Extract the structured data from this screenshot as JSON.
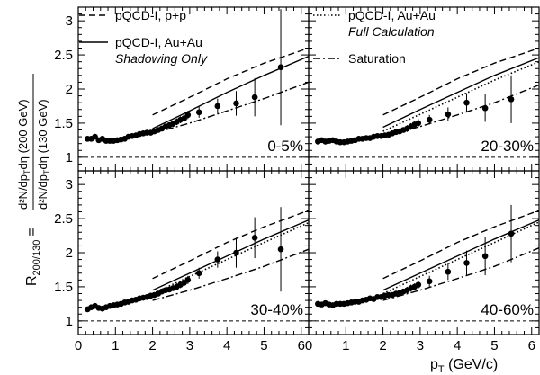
{
  "figure": {
    "ylabel_left": "R",
    "ylabel_left_sub": "200/130",
    "ylabel_equals": "=",
    "ylabel_num": "d²N/dp",
    "ylabel_num_sub": "T",
    "ylabel_num_tail": "dη  (200 GeV)",
    "ylabel_den": "d²N/dp",
    "ylabel_den_sub": "T",
    "ylabel_den_tail": "dη  (130 GeV)",
    "xlabel_main": "p",
    "xlabel_sub": "T",
    "xlabel_tail": " (GeV/c)"
  },
  "legend": {
    "pp": "pQCD-I, p+p",
    "shadow_1": "pQCD-I, Au+Au",
    "shadow_2": "Shadowing Only",
    "full_1": "pQCD-I, Au+Au",
    "full_2": "Full Calculation",
    "sat": "Saturation"
  },
  "colors": {
    "ink": "#000000",
    "background": "#ffffff"
  },
  "chart_data": [
    {
      "type": "line",
      "panel": "top-left",
      "label": "0-5%",
      "xlim": [
        0,
        6.2
      ],
      "ylim": [
        0.8,
        3.2
      ],
      "yticks": [
        1,
        1.5,
        2,
        2.5,
        3
      ],
      "ytick_labels": [
        "1",
        "1.5",
        "2",
        "2.5",
        "3"
      ],
      "reference_line_y": 1,
      "series": [
        {
          "name": "pQCD-I, p+p",
          "style": "dashed",
          "x": [
            2.0,
            3.0,
            4.0,
            5.0,
            6.2
          ],
          "y": [
            1.62,
            1.88,
            2.15,
            2.38,
            2.6
          ]
        },
        {
          "name": "pQCD-I, Au+Au (Shadowing Only)",
          "style": "solid",
          "x": [
            2.0,
            3.0,
            4.0,
            5.0,
            6.2
          ],
          "y": [
            1.42,
            1.68,
            1.95,
            2.2,
            2.48
          ]
        },
        {
          "name": "Saturation",
          "style": "dashdot",
          "x": [
            2.0,
            3.0,
            4.0,
            5.0,
            6.2
          ],
          "y": [
            1.35,
            1.5,
            1.68,
            1.86,
            2.1
          ]
        }
      ],
      "points": {
        "x": [
          0.25,
          0.35,
          0.45,
          0.55,
          0.65,
          0.75,
          0.85,
          0.95,
          1.05,
          1.15,
          1.25,
          1.35,
          1.45,
          1.55,
          1.65,
          1.75,
          1.85,
          1.95,
          2.05,
          2.15,
          2.25,
          2.35,
          2.45,
          2.55,
          2.65,
          2.75,
          2.85,
          2.95,
          3.25,
          3.75,
          4.25,
          4.75,
          5.45
        ],
        "y": [
          1.27,
          1.27,
          1.3,
          1.25,
          1.27,
          1.24,
          1.24,
          1.24,
          1.25,
          1.26,
          1.27,
          1.3,
          1.31,
          1.32,
          1.34,
          1.35,
          1.36,
          1.36,
          1.38,
          1.4,
          1.42,
          1.45,
          1.47,
          1.49,
          1.52,
          1.55,
          1.57,
          1.62,
          1.66,
          1.75,
          1.79,
          1.88,
          2.32
        ],
        "err": [
          0.03,
          0.03,
          0.03,
          0.03,
          0.03,
          0.03,
          0.03,
          0.03,
          0.03,
          0.03,
          0.03,
          0.03,
          0.03,
          0.03,
          0.03,
          0.03,
          0.03,
          0.03,
          0.03,
          0.04,
          0.04,
          0.04,
          0.04,
          0.04,
          0.05,
          0.05,
          0.05,
          0.06,
          0.08,
          0.11,
          0.18,
          0.28,
          0.85
        ]
      }
    },
    {
      "type": "line",
      "panel": "top-right",
      "label": "20-30%",
      "xlim": [
        0,
        6.2
      ],
      "ylim": [
        0.8,
        3.2
      ],
      "reference_line_y": 1,
      "series": [
        {
          "name": "pQCD-I, p+p",
          "style": "dashed",
          "x": [
            2.0,
            3.0,
            4.0,
            5.0,
            6.2
          ],
          "y": [
            1.62,
            1.88,
            2.15,
            2.38,
            2.6
          ]
        },
        {
          "name": "pQCD-I, Au+Au (Shadowing Only)",
          "style": "solid",
          "x": [
            2.0,
            3.0,
            4.0,
            5.0,
            6.2
          ],
          "y": [
            1.44,
            1.7,
            1.95,
            2.2,
            2.46
          ]
        },
        {
          "name": "pQCD-I, Au+Au (Full Calculation)",
          "style": "dotted",
          "x": [
            2.0,
            3.0,
            4.0,
            5.0,
            6.2
          ],
          "y": [
            1.38,
            1.63,
            1.88,
            2.13,
            2.4
          ]
        },
        {
          "name": "Saturation",
          "style": "dashdot",
          "x": [
            2.0,
            3.0,
            4.0,
            5.0,
            6.2
          ],
          "y": [
            1.3,
            1.45,
            1.62,
            1.8,
            2.06
          ]
        }
      ],
      "points": {
        "x": [
          0.25,
          0.35,
          0.45,
          0.55,
          0.65,
          0.75,
          0.85,
          0.95,
          1.05,
          1.15,
          1.25,
          1.35,
          1.45,
          1.55,
          1.65,
          1.75,
          1.85,
          1.95,
          2.05,
          2.15,
          2.25,
          2.35,
          2.45,
          2.55,
          2.65,
          2.75,
          2.85,
          2.95,
          3.25,
          3.75,
          4.25,
          4.75,
          5.45
        ],
        "y": [
          1.23,
          1.25,
          1.23,
          1.24,
          1.25,
          1.23,
          1.22,
          1.22,
          1.23,
          1.24,
          1.25,
          1.27,
          1.27,
          1.28,
          1.28,
          1.3,
          1.31,
          1.31,
          1.32,
          1.33,
          1.35,
          1.37,
          1.38,
          1.4,
          1.42,
          1.45,
          1.48,
          1.5,
          1.55,
          1.63,
          1.8,
          1.72,
          1.85
        ],
        "err": [
          0.03,
          0.03,
          0.03,
          0.03,
          0.03,
          0.03,
          0.03,
          0.03,
          0.03,
          0.03,
          0.03,
          0.03,
          0.03,
          0.03,
          0.03,
          0.03,
          0.03,
          0.03,
          0.03,
          0.04,
          0.04,
          0.04,
          0.04,
          0.04,
          0.05,
          0.05,
          0.05,
          0.06,
          0.07,
          0.1,
          0.14,
          0.2,
          0.35
        ]
      }
    },
    {
      "type": "line",
      "panel": "bottom-left",
      "label": "30-40%",
      "xlim": [
        0,
        6.2
      ],
      "ylim": [
        0.8,
        3.2
      ],
      "xticks": [
        0,
        1,
        2,
        3,
        4,
        5,
        6
      ],
      "xtick_labels": [
        "0",
        "1",
        "2",
        "3",
        "4",
        "5",
        "6"
      ],
      "yticks": [
        1,
        1.5,
        2,
        2.5,
        3
      ],
      "ytick_labels": [
        "1",
        "1.5",
        "2",
        "2.5",
        "3"
      ],
      "reference_line_y": 1,
      "series": [
        {
          "name": "pQCD-I, p+p",
          "style": "dashed",
          "x": [
            2.0,
            3.0,
            4.0,
            5.0,
            6.2
          ],
          "y": [
            1.62,
            1.88,
            2.15,
            2.38,
            2.62
          ]
        },
        {
          "name": "pQCD-I, Au+Au (Shadowing Only)",
          "style": "solid",
          "x": [
            2.0,
            3.0,
            4.0,
            5.0,
            6.2
          ],
          "y": [
            1.45,
            1.7,
            1.95,
            2.2,
            2.48
          ]
        },
        {
          "name": "pQCD-I, Au+Au (Full Calculation)",
          "style": "dotted",
          "x": [
            2.0,
            3.0,
            4.0,
            5.0,
            6.2
          ],
          "y": [
            1.4,
            1.65,
            1.9,
            2.15,
            2.44
          ]
        },
        {
          "name": "Saturation",
          "style": "dashdot",
          "x": [
            2.0,
            3.0,
            4.0,
            5.0,
            6.2
          ],
          "y": [
            1.3,
            1.45,
            1.62,
            1.8,
            2.05
          ]
        }
      ],
      "points": {
        "x": [
          0.25,
          0.35,
          0.45,
          0.55,
          0.65,
          0.75,
          0.85,
          0.95,
          1.05,
          1.15,
          1.25,
          1.35,
          1.45,
          1.55,
          1.65,
          1.75,
          1.85,
          1.95,
          2.05,
          2.15,
          2.25,
          2.35,
          2.45,
          2.55,
          2.65,
          2.75,
          2.85,
          2.95,
          3.25,
          3.75,
          4.25,
          4.75,
          5.45
        ],
        "y": [
          1.17,
          1.2,
          1.22,
          1.19,
          1.18,
          1.2,
          1.22,
          1.23,
          1.24,
          1.25,
          1.27,
          1.28,
          1.3,
          1.31,
          1.33,
          1.34,
          1.35,
          1.37,
          1.38,
          1.4,
          1.43,
          1.45,
          1.46,
          1.48,
          1.5,
          1.53,
          1.56,
          1.6,
          1.7,
          1.9,
          2.0,
          2.22,
          2.05
        ],
        "err": [
          0.03,
          0.03,
          0.03,
          0.03,
          0.03,
          0.03,
          0.03,
          0.03,
          0.03,
          0.03,
          0.03,
          0.03,
          0.03,
          0.03,
          0.03,
          0.03,
          0.03,
          0.03,
          0.03,
          0.04,
          0.04,
          0.04,
          0.04,
          0.04,
          0.05,
          0.05,
          0.05,
          0.06,
          0.08,
          0.12,
          0.22,
          0.3,
          0.62
        ]
      }
    },
    {
      "type": "line",
      "panel": "bottom-right",
      "label": "40-60%",
      "xlim": [
        0,
        6.2
      ],
      "ylim": [
        0.8,
        3.2
      ],
      "xticks": [
        0,
        1,
        2,
        3,
        4,
        5,
        6
      ],
      "xtick_labels": [
        "0",
        "1",
        "2",
        "3",
        "4",
        "5",
        "6"
      ],
      "reference_line_y": 1,
      "series": [
        {
          "name": "pQCD-I, p+p",
          "style": "dashed",
          "x": [
            2.0,
            3.0,
            4.0,
            5.0,
            6.2
          ],
          "y": [
            1.62,
            1.88,
            2.15,
            2.38,
            2.62
          ]
        },
        {
          "name": "pQCD-I, Au+Au (Shadowing Only)",
          "style": "solid",
          "x": [
            2.0,
            3.0,
            4.0,
            5.0,
            6.2
          ],
          "y": [
            1.45,
            1.7,
            1.95,
            2.2,
            2.48
          ]
        },
        {
          "name": "pQCD-I, Au+Au (Full Calculation)",
          "style": "dotted",
          "x": [
            2.0,
            3.0,
            4.0,
            5.0,
            6.2
          ],
          "y": [
            1.4,
            1.65,
            1.9,
            2.15,
            2.45
          ]
        },
        {
          "name": "Saturation",
          "style": "dashdot",
          "x": [
            2.0,
            3.0,
            4.0,
            5.0,
            6.2
          ],
          "y": [
            1.3,
            1.45,
            1.62,
            1.8,
            2.07
          ]
        }
      ],
      "points": {
        "x": [
          0.25,
          0.35,
          0.45,
          0.55,
          0.65,
          0.75,
          0.85,
          0.95,
          1.05,
          1.15,
          1.25,
          1.35,
          1.45,
          1.55,
          1.65,
          1.75,
          1.85,
          1.95,
          2.05,
          2.15,
          2.25,
          2.35,
          2.45,
          2.55,
          2.65,
          2.75,
          2.85,
          2.95,
          3.25,
          3.75,
          4.25,
          4.75,
          5.45
        ],
        "y": [
          1.25,
          1.24,
          1.26,
          1.24,
          1.23,
          1.25,
          1.25,
          1.25,
          1.26,
          1.27,
          1.28,
          1.28,
          1.3,
          1.31,
          1.33,
          1.32,
          1.35,
          1.35,
          1.37,
          1.38,
          1.38,
          1.4,
          1.41,
          1.43,
          1.45,
          1.48,
          1.5,
          1.53,
          1.58,
          1.72,
          1.85,
          1.95,
          2.28
        ],
        "err": [
          0.03,
          0.03,
          0.03,
          0.03,
          0.03,
          0.03,
          0.03,
          0.03,
          0.03,
          0.03,
          0.03,
          0.03,
          0.03,
          0.03,
          0.03,
          0.03,
          0.03,
          0.03,
          0.03,
          0.04,
          0.04,
          0.04,
          0.04,
          0.04,
          0.05,
          0.05,
          0.05,
          0.06,
          0.08,
          0.12,
          0.18,
          0.28,
          0.42
        ]
      }
    }
  ]
}
